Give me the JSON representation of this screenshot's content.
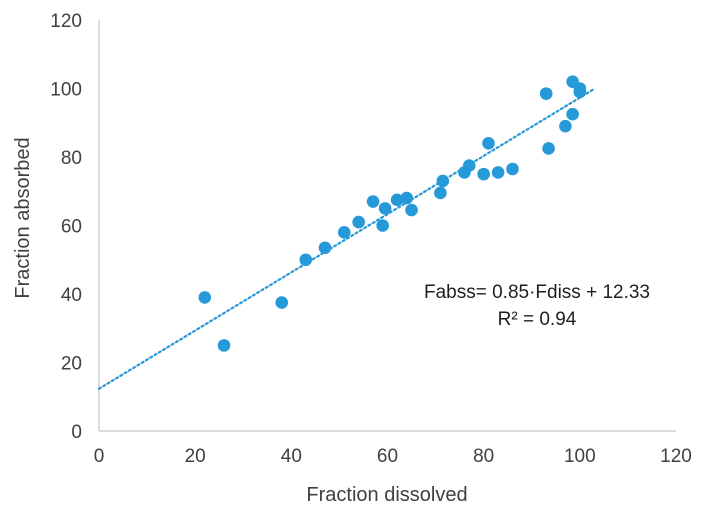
{
  "chart_data": {
    "type": "scatter",
    "xlabel": "Fraction dissolved",
    "ylabel": "Fraction absorbed",
    "xlim": [
      0,
      120
    ],
    "ylim": [
      0,
      120
    ],
    "xticks": [
      0,
      20,
      40,
      60,
      80,
      100,
      120
    ],
    "yticks": [
      0,
      20,
      40,
      60,
      80,
      100,
      120
    ],
    "tick_labels_x": [
      "0",
      "20",
      "40",
      "60",
      "80",
      "100",
      "120"
    ],
    "tick_labels_y": [
      "0",
      "20",
      "40",
      "60",
      "80",
      "100",
      "120"
    ],
    "grid": false,
    "point_color": "#2699d8",
    "trendline_color": "#2699d8",
    "points": [
      {
        "x": 22,
        "y": 39
      },
      {
        "x": 26,
        "y": 25
      },
      {
        "x": 38,
        "y": 37.5
      },
      {
        "x": 43,
        "y": 50
      },
      {
        "x": 47,
        "y": 53.5
      },
      {
        "x": 51,
        "y": 58
      },
      {
        "x": 54,
        "y": 61
      },
      {
        "x": 57,
        "y": 67
      },
      {
        "x": 59,
        "y": 60
      },
      {
        "x": 59.5,
        "y": 65
      },
      {
        "x": 62,
        "y": 67.5
      },
      {
        "x": 64,
        "y": 68
      },
      {
        "x": 65,
        "y": 64.5
      },
      {
        "x": 71,
        "y": 69.5
      },
      {
        "x": 71.5,
        "y": 73
      },
      {
        "x": 76,
        "y": 75.5
      },
      {
        "x": 77,
        "y": 77.5
      },
      {
        "x": 80,
        "y": 75
      },
      {
        "x": 81,
        "y": 84
      },
      {
        "x": 83,
        "y": 75.5
      },
      {
        "x": 86,
        "y": 76.5
      },
      {
        "x": 93,
        "y": 98.5
      },
      {
        "x": 93.5,
        "y": 82.5
      },
      {
        "x": 97,
        "y": 89
      },
      {
        "x": 98.5,
        "y": 102
      },
      {
        "x": 98.5,
        "y": 92.5
      },
      {
        "x": 100,
        "y": 100
      },
      {
        "x": 100,
        "y": 99
      }
    ],
    "trendline": {
      "equation_label": "Fabss= 0.85·Fdiss + 12.33",
      "r2_label": "R² = 0.94",
      "slope": 0.85,
      "intercept": 12.33,
      "x_range": [
        0,
        103
      ]
    }
  }
}
